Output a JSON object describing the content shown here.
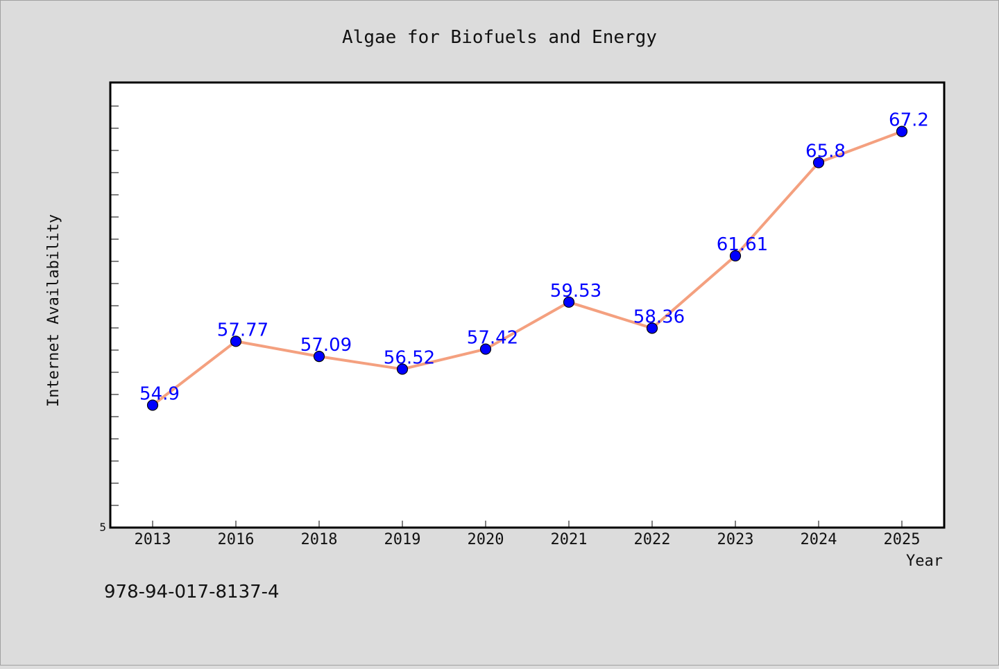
{
  "chart_data": {
    "type": "line",
    "title": "Algae for Biofuels and Energy",
    "xlabel": "Year",
    "ylabel": "Internet Availability",
    "categories": [
      "2013",
      "2016",
      "2018",
      "2019",
      "2020",
      "2021",
      "2022",
      "2023",
      "2024",
      "2025"
    ],
    "series": [
      {
        "values": [
          54.9,
          57.77,
          57.09,
          56.52,
          57.42,
          59.53,
          58.36,
          61.61,
          65.8,
          67.2
        ],
        "data_labels": [
          "54.9",
          "57.77",
          "57.09",
          "56.52",
          "57.42",
          "59.53",
          "58.36",
          "61.61",
          "65.8",
          "67.2"
        ]
      }
    ],
    "yaxis_tick_labels": [
      "5"
    ],
    "ylim": [
      49.4,
      69.4
    ],
    "grid": false,
    "legend": "none",
    "colors": {
      "line": "#f4a07f",
      "marker": "#0000ff",
      "data_label": "#0000ff",
      "background": "#dcdcdc",
      "plot_background": "#ffffff"
    }
  },
  "footer_text": "978-94-017-8137-4"
}
